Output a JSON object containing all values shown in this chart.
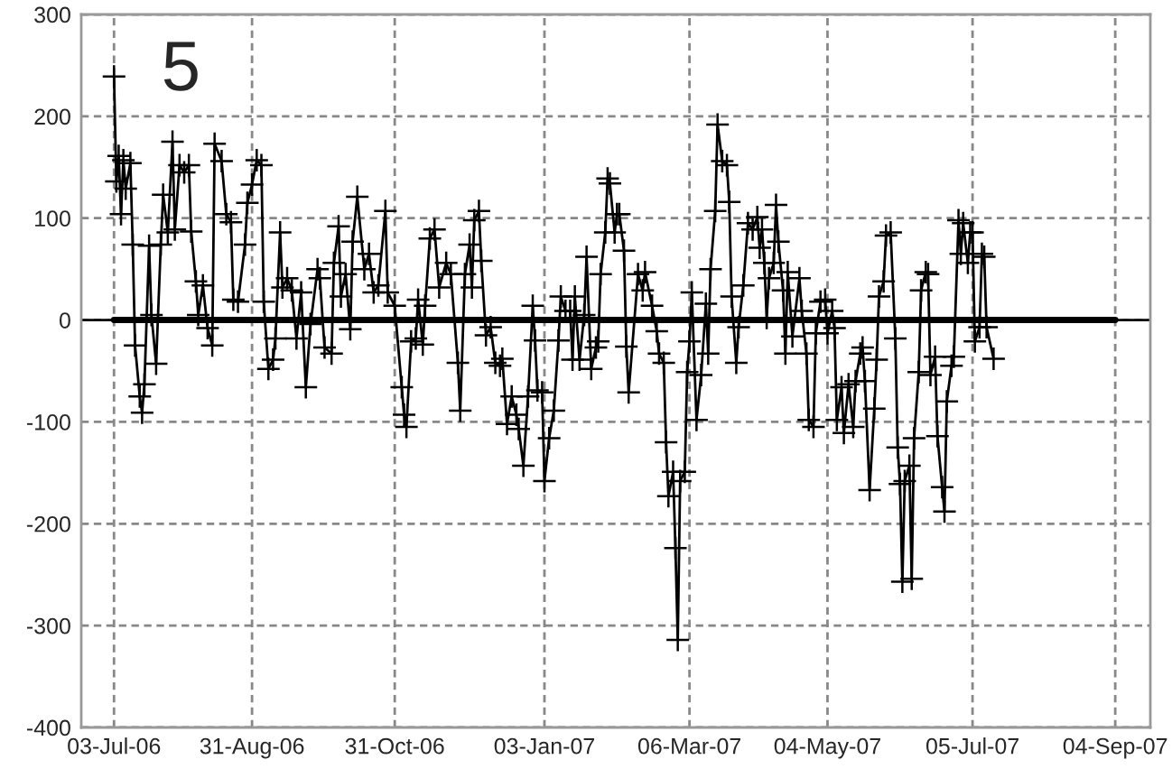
{
  "chart_data": {
    "type": "line",
    "annotations": [
      "5"
    ],
    "xlim": [
      "2006-06-19",
      "2007-09-19"
    ],
    "xticks": [
      {
        "value": "2006-07-03",
        "label": "03-Jul-06"
      },
      {
        "value": "2006-08-31",
        "label": "31-Aug-06"
      },
      {
        "value": "2006-10-31",
        "label": "31-Oct-06"
      },
      {
        "value": "2007-01-03",
        "label": "03-Jan-07"
      },
      {
        "value": "2007-03-06",
        "label": "06-Mar-07"
      },
      {
        "value": "2007-05-04",
        "label": "04-May-07"
      },
      {
        "value": "2007-07-05",
        "label": "05-Jul-07"
      },
      {
        "value": "2007-09-04",
        "label": "04-Sep-07"
      }
    ],
    "ylim": [
      -400,
      300
    ],
    "yticks": [
      -400,
      -300,
      -200,
      -100,
      0,
      100,
      200,
      300
    ],
    "grid": true,
    "ref_lines": [
      {
        "axis": "y",
        "value": 0,
        "color": "#000000"
      }
    ],
    "series": [
      {
        "color": "#000000",
        "marker": "cross",
        "x": [
          "2006-07-03",
          "2006-07-04",
          "2006-07-05",
          "2006-07-06",
          "2006-07-07",
          "2006-07-08",
          "2006-07-10",
          "2006-07-11",
          "2006-07-12",
          "2006-07-14",
          "2006-07-15",
          "2006-07-16",
          "2006-07-18",
          "2006-07-19",
          "2006-07-21",
          "2006-07-23",
          "2006-07-24",
          "2006-07-26",
          "2006-07-28",
          "2006-07-29",
          "2006-07-31",
          "2006-08-02",
          "2006-08-04",
          "2006-08-05",
          "2006-08-07",
          "2006-08-08",
          "2006-08-10",
          "2006-08-12",
          "2006-08-14",
          "2006-08-15",
          "2006-08-18",
          "2006-08-20",
          "2006-08-22",
          "2006-08-23",
          "2006-08-25",
          "2006-08-28",
          "2006-08-29",
          "2006-08-31",
          "2006-09-02",
          "2006-09-04",
          "2006-09-05",
          "2006-09-07",
          "2006-09-09",
          "2006-09-10",
          "2006-09-12",
          "2006-09-13",
          "2006-09-15",
          "2006-09-17",
          "2006-09-19",
          "2006-09-21",
          "2006-09-23",
          "2006-09-25",
          "2006-09-28",
          "2006-09-29",
          "2006-10-01",
          "2006-10-04",
          "2006-10-05",
          "2006-10-07",
          "2006-10-08",
          "2006-10-10",
          "2006-10-12",
          "2006-10-13",
          "2006-10-15",
          "2006-10-18",
          "2006-10-20",
          "2006-10-22",
          "2006-10-24",
          "2006-10-27",
          "2006-10-28",
          "2006-10-31",
          "2006-11-03",
          "2006-11-04",
          "2006-11-05",
          "2006-11-07",
          "2006-11-09",
          "2006-11-10",
          "2006-11-12",
          "2006-11-13",
          "2006-11-15",
          "2006-11-17",
          "2006-11-19",
          "2006-11-22",
          "2006-11-24",
          "2006-11-27",
          "2006-11-28",
          "2006-11-30",
          "2006-12-02",
          "2006-12-03",
          "2006-12-04",
          "2006-12-06",
          "2006-12-07",
          "2006-12-09",
          "2006-12-11",
          "2006-12-13",
          "2006-12-15",
          "2006-12-16",
          "2006-12-18",
          "2006-12-20",
          "2006-12-22",
          "2006-12-23",
          "2006-12-25",
          "2006-12-27",
          "2006-12-29",
          "2006-12-30",
          "2006-12-31",
          "2007-01-02",
          "2007-01-03",
          "2007-01-05",
          "2007-01-07",
          "2007-01-09",
          "2007-01-10",
          "2007-01-12",
          "2007-01-14",
          "2007-01-15",
          "2007-01-16",
          "2007-01-18",
          "2007-01-20",
          "2007-01-21",
          "2007-01-23",
          "2007-01-25",
          "2007-01-26",
          "2007-01-27",
          "2007-01-29",
          "2007-01-30",
          "2007-01-31",
          "2007-02-02",
          "2007-02-03",
          "2007-02-04",
          "2007-02-06",
          "2007-02-07",
          "2007-02-08",
          "2007-02-12",
          "2007-02-14",
          "2007-02-15",
          "2007-02-18",
          "2007-02-20",
          "2007-02-21",
          "2007-02-23",
          "2007-02-24",
          "2007-02-25",
          "2007-02-27",
          "2007-02-28",
          "2007-03-01",
          "2007-03-02",
          "2007-03-04",
          "2007-03-05",
          "2007-03-06",
          "2007-03-07",
          "2007-03-09",
          "2007-03-11",
          "2007-03-13",
          "2007-03-14",
          "2007-03-15",
          "2007-03-17",
          "2007-03-18",
          "2007-03-20",
          "2007-03-22",
          "2007-03-23",
          "2007-03-24",
          "2007-03-26",
          "2007-03-27",
          "2007-03-29",
          "2007-03-31",
          "2007-04-02",
          "2007-04-04",
          "2007-04-05",
          "2007-04-06",
          "2007-04-07",
          "2007-04-08",
          "2007-04-09",
          "2007-04-11",
          "2007-04-12",
          "2007-04-13",
          "2007-04-15",
          "2007-04-16",
          "2007-04-17",
          "2007-04-19",
          "2007-04-22",
          "2007-04-23",
          "2007-04-25",
          "2007-04-26",
          "2007-04-28",
          "2007-04-29",
          "2007-05-01",
          "2007-05-03",
          "2007-05-04",
          "2007-05-06",
          "2007-05-07",
          "2007-05-08",
          "2007-05-10",
          "2007-05-11",
          "2007-05-13",
          "2007-05-15",
          "2007-05-16",
          "2007-05-18",
          "2007-05-19",
          "2007-05-20",
          "2007-05-22",
          "2007-05-24",
          "2007-05-25",
          "2007-05-26",
          "2007-05-28",
          "2007-05-29",
          "2007-05-31",
          "2007-06-02",
          "2007-06-03",
          "2007-06-04",
          "2007-06-05",
          "2007-06-06",
          "2007-06-08",
          "2007-06-09",
          "2007-06-10",
          "2007-06-12",
          "2007-06-13",
          "2007-06-15",
          "2007-06-16",
          "2007-06-17",
          "2007-06-19",
          "2007-06-20",
          "2007-06-22",
          "2007-06-23",
          "2007-06-24",
          "2007-06-26",
          "2007-06-27",
          "2007-06-29",
          "2007-06-30",
          "2007-07-01",
          "2007-07-03",
          "2007-07-04",
          "2007-07-05",
          "2007-07-06",
          "2007-07-08",
          "2007-07-09",
          "2007-07-10",
          "2007-07-11",
          "2007-07-14"
        ],
        "values": [
          239,
          136,
          161,
          104,
          157,
          129,
          154,
          74,
          -25,
          -75,
          -91,
          -63,
          73,
          5,
          -43,
          74,
          123,
          86,
          175,
          89,
          152,
          145,
          152,
          87,
          38,
          5,
          34,
          -8,
          -25,
          173,
          156,
          104,
          96,
          20,
          18,
          74,
          115,
          133,
          157,
          152,
          18,
          -48,
          -39,
          -18,
          86,
          32,
          41,
          29,
          -18,
          27,
          -66,
          -4,
          50,
          41,
          -27,
          -33,
          56,
          92,
          23,
          45,
          -9,
          77,
          121,
          50,
          65,
          27,
          34,
          107,
          27,
          14,
          -66,
          -93,
          -105,
          -21,
          -18,
          20,
          -24,
          14,
          80,
          89,
          32,
          56,
          45,
          -42,
          -89,
          45,
          74,
          32,
          98,
          107,
          58,
          -15,
          -7,
          -42,
          -45,
          -38,
          -102,
          -75,
          -93,
          -107,
          -143,
          -75,
          14,
          -20,
          -69,
          -71,
          -158,
          -116,
          -89,
          -20,
          23,
          9,
          9,
          -39,
          23,
          -39,
          5,
          62,
          -48,
          -27,
          -21,
          45,
          86,
          139,
          134,
          86,
          104,
          104,
          68,
          -26,
          -71,
          45,
          29,
          47,
          14,
          -11,
          -33,
          -42,
          -120,
          -173,
          -149,
          -224,
          -314,
          -158,
          -149,
          -51,
          -21,
          27,
          -98,
          -54,
          16,
          -33,
          50,
          107,
          192,
          156,
          152,
          116,
          23,
          -42,
          -7,
          34,
          95,
          89,
          101,
          71,
          89,
          56,
          2,
          41,
          56,
          113,
          77,
          29,
          -33,
          47,
          -16,
          41,
          9,
          -33,
          -98,
          -105,
          -13,
          18,
          20,
          -13,
          9,
          -8,
          -98,
          -66,
          -111,
          -63,
          -105,
          -60,
          -33,
          -27,
          -60,
          -167,
          -87,
          -39,
          23,
          38,
          83,
          86,
          -18,
          -125,
          -161,
          -257,
          -158,
          -143,
          -254,
          -116,
          -51,
          29,
          47,
          45,
          -54,
          -36,
          -114,
          -164,
          -188,
          -80,
          -45,
          -36,
          98,
          65,
          95,
          56,
          86,
          86,
          -21,
          -7,
          65,
          62,
          -7,
          -38
        ]
      },
      {
        "color": "#000000",
        "marker": "none",
        "x": [
          "2006-07-03",
          "2007-09-04"
        ],
        "values": [
          0,
          0
        ]
      }
    ]
  }
}
